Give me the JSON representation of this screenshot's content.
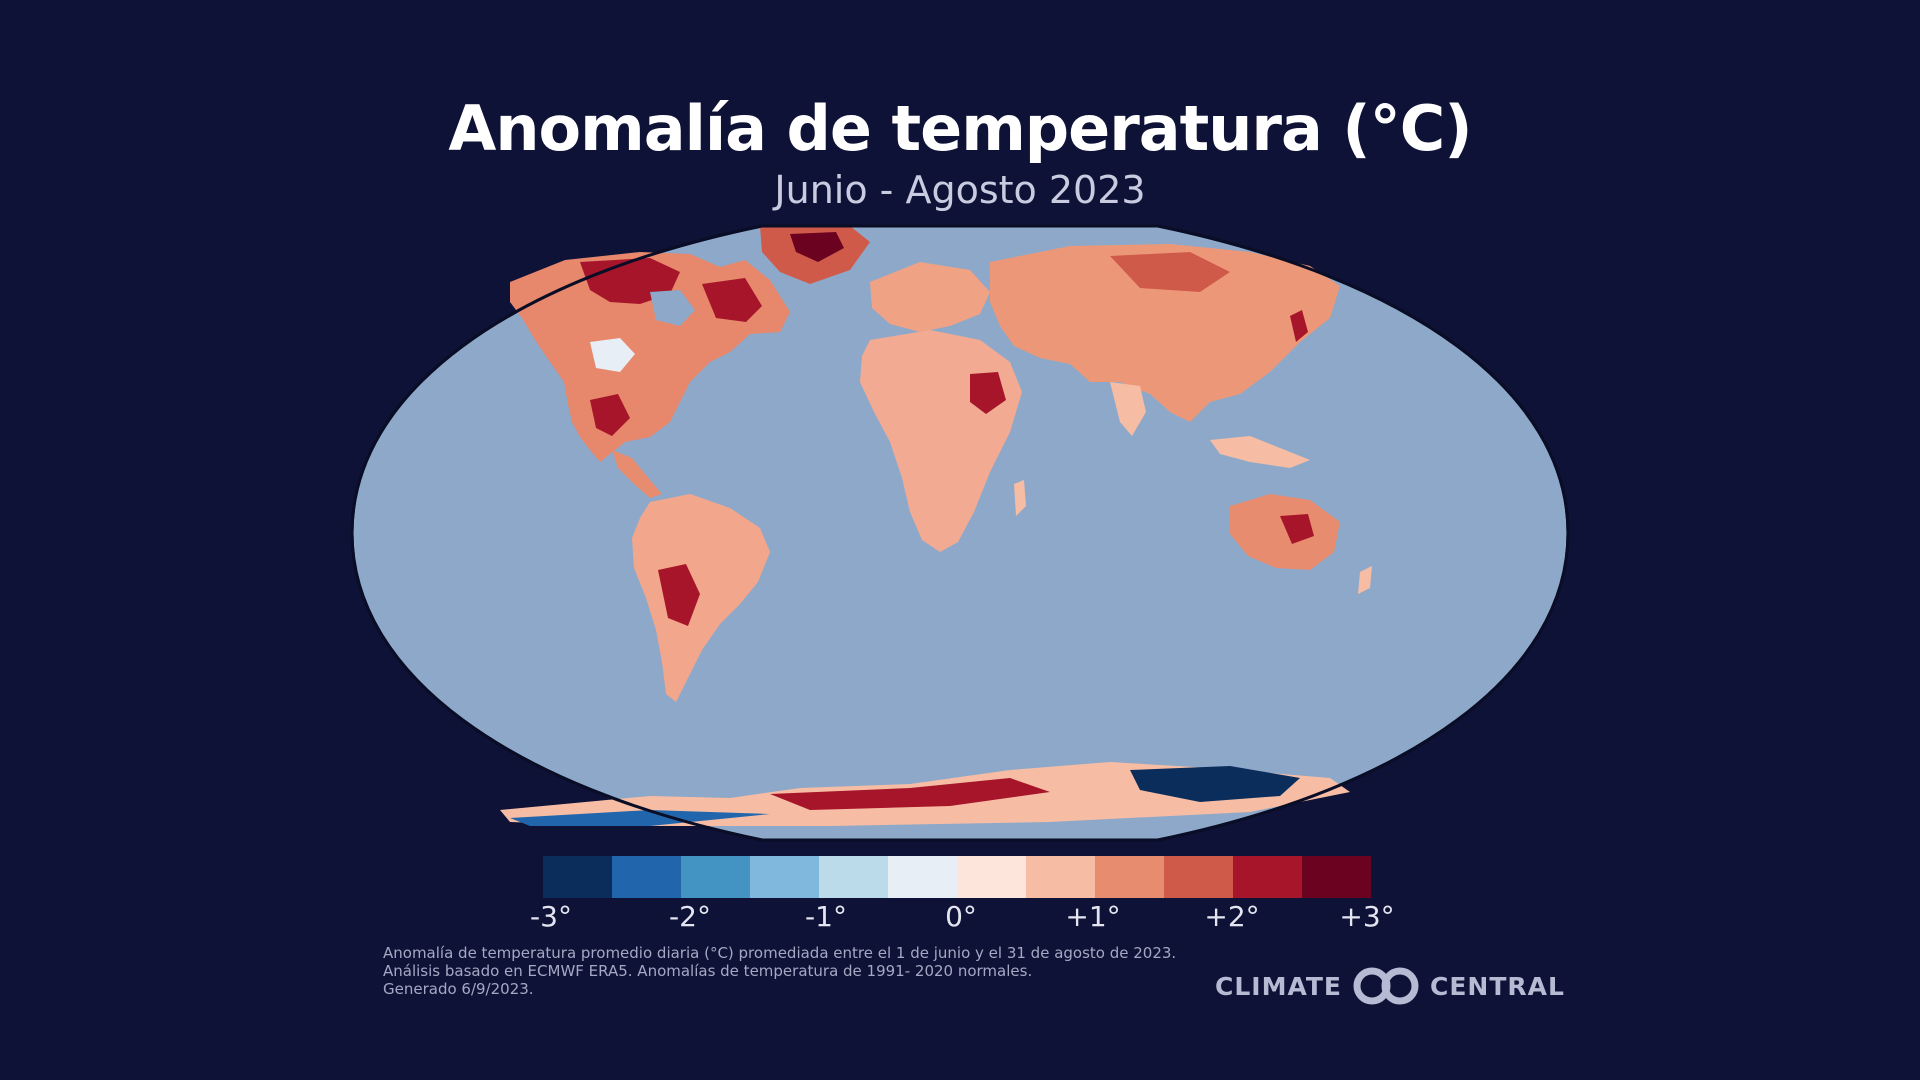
{
  "header": {
    "title": "Anomalía de temperatura (°C)",
    "subtitle": "Junio - Agosto 2023"
  },
  "map": {
    "ocean_color": "#8ea8c9",
    "outline_color": "#0a0d26",
    "land_default_color": "#f1b49a"
  },
  "legend": {
    "colors": [
      "#0b2d5c",
      "#2166ac",
      "#4393c3",
      "#7fb8dc",
      "#bcdbea",
      "#e7eef6",
      "#fde5dc",
      "#f6bda4",
      "#e88c6f",
      "#d05a4a",
      "#a7152a",
      "#6b0220"
    ],
    "tick_labels": [
      "-3°",
      "-2°",
      "-1°",
      "0°",
      "+1°",
      "+2°",
      "+3°"
    ]
  },
  "footnote": {
    "line1": "Anomalía de temperatura promedio diaria (°C) promediada entre el 1 de junio y el 31 de agosto de 2023.",
    "line2": "Análisis basado en ECMWF ERA5. Anomalías de temperatura de 1991- 2020 normales.",
    "line3": "Generado 6/9/2023."
  },
  "logo": {
    "left": "CLIMATE",
    "right": "CENTRAL"
  }
}
